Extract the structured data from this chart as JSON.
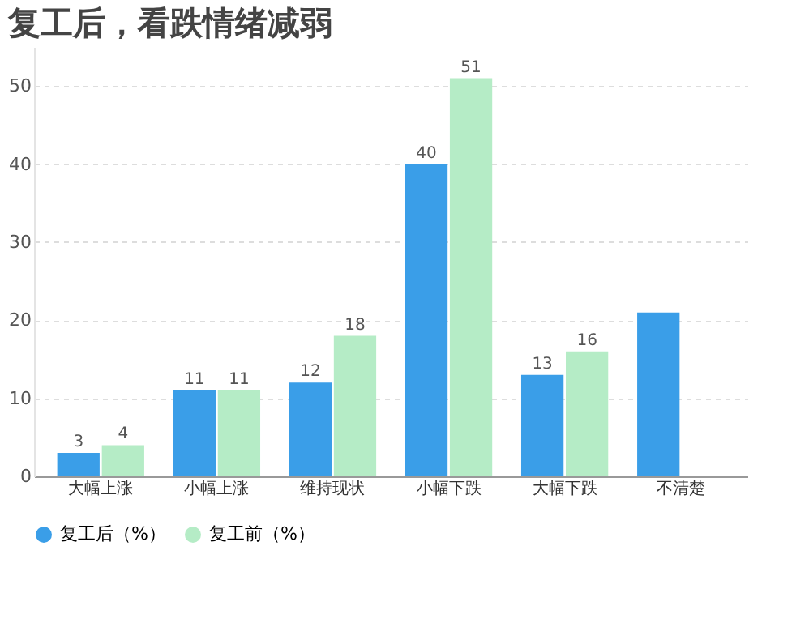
{
  "chart_data": {
    "type": "bar",
    "title": "复工后，看跌情绪减弱",
    "categories": [
      "大幅上涨",
      "小幅上涨",
      "维持现状",
      "小幅下跌",
      "大幅下跌",
      "不清楚"
    ],
    "series": [
      {
        "name": "复工后（%）",
        "color": "#3a9ee8",
        "values": [
          3,
          11,
          12,
          40,
          13,
          21
        ],
        "value_labels": [
          "3",
          "11",
          "12",
          "40",
          "13",
          null
        ]
      },
      {
        "name": "复工前（%）",
        "color": "#b5ecc6",
        "values": [
          4,
          11,
          18,
          51,
          16,
          null
        ],
        "value_labels": [
          "4",
          "11",
          "18",
          "51",
          "16",
          null
        ]
      }
    ],
    "ylim": [
      0,
      55
    ],
    "yticks": [
      0,
      10,
      20,
      30,
      40,
      50
    ],
    "grid": "y",
    "legend": "bottom"
  }
}
